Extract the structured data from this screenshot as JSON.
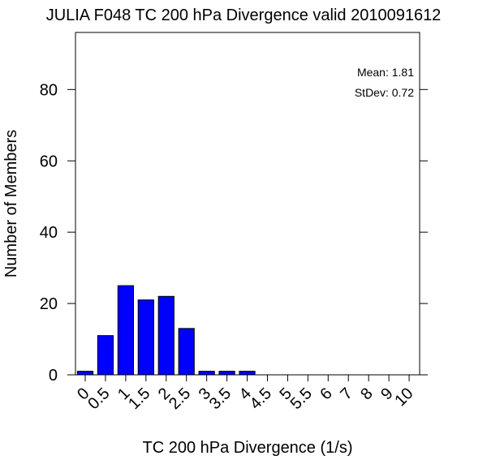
{
  "chart_data": {
    "type": "bar",
    "title": "JULIA F048 TC 200 hPa Divergence valid 2010091612",
    "xlabel": "TC 200 hPa Divergence (1/s)",
    "ylabel": "Number of Members",
    "annotations": {
      "mean": "Mean: 1.81",
      "stdev": "StDev: 0.72"
    },
    "categories": [
      "0",
      "0.5",
      "1",
      "1.5",
      "2",
      "2.5",
      "3",
      "3.5",
      "4",
      "4.5",
      "5",
      "5.5",
      "6",
      "7",
      "8",
      "9",
      "10"
    ],
    "values": [
      1,
      11,
      25,
      21,
      22,
      13,
      1,
      1,
      1,
      0,
      0,
      0,
      0,
      0,
      0,
      0,
      0
    ],
    "yticks": [
      0,
      20,
      40,
      60,
      80
    ],
    "ylim": [
      0,
      96
    ],
    "grid": false,
    "bar_color": "#0000ff"
  }
}
